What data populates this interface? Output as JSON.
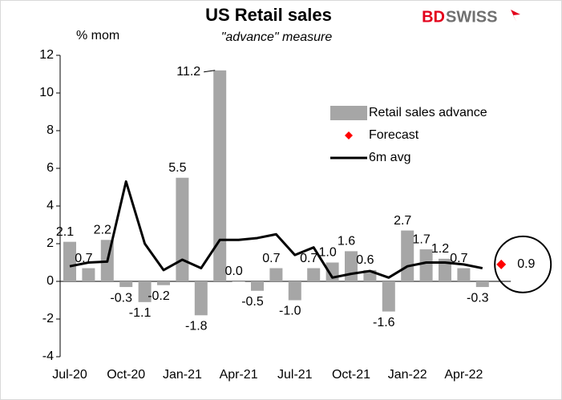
{
  "chart_data": {
    "type": "bar-line",
    "title": "US Retail sales",
    "subtitle": "\"advance\" measure",
    "y_label": "% mom",
    "logo": [
      "BD",
      "SWISS"
    ],
    "categories": [
      "Jul-20",
      null,
      null,
      "Oct-20",
      null,
      null,
      "Jan-21",
      null,
      null,
      "Apr-21",
      null,
      null,
      "Jul-21",
      null,
      null,
      "Oct-21",
      null,
      null,
      "Jan-22",
      null,
      null,
      "Apr-22",
      null,
      null
    ],
    "series": [
      {
        "name": "Retail sales advance",
        "kind": "bar",
        "color": "#a6a6a6",
        "values": [
          2.1,
          0.7,
          2.2,
          -0.3,
          -1.1,
          -0.2,
          5.5,
          -1.8,
          11.2,
          0,
          -0.5,
          0.7,
          -1.0,
          0.7,
          1.0,
          1.6,
          0.6,
          -1.6,
          2.7,
          1.7,
          1.2,
          0.7,
          -0.3,
          null
        ],
        "value_labels": [
          "2.1",
          "0.7",
          "2.2",
          "-0.3",
          "-1.1",
          "-0.2",
          "5.5",
          "-1.8",
          "11.2",
          "0.0",
          "-0.5",
          "0.7",
          "-1.0",
          "0.7",
          "1.0",
          "1.6",
          "0.6",
          "-1.6",
          "2.7",
          "1.7",
          "1.2",
          "0.7",
          "-0.3",
          null
        ]
      },
      {
        "name": "Forecast",
        "kind": "point",
        "color": "#ff0000",
        "values": [
          null,
          null,
          null,
          null,
          null,
          null,
          null,
          null,
          null,
          null,
          null,
          null,
          null,
          null,
          null,
          null,
          null,
          null,
          null,
          null,
          null,
          null,
          null,
          0.9
        ]
      },
      {
        "name": "6m avg",
        "kind": "line",
        "color": "#000000",
        "values": [
          0.8,
          1.0,
          1.05,
          5.3,
          2.0,
          0.6,
          1.15,
          0.7,
          2.2,
          2.2,
          2.3,
          2.5,
          1.4,
          1.8,
          0.2,
          0.4,
          0.55,
          0.2,
          0.8,
          1.0,
          1.0,
          0.9,
          0.7,
          null
        ]
      }
    ],
    "ylim": [
      -4,
      12
    ],
    "yticks": [
      -4,
      -2,
      0,
      2,
      4,
      6,
      8,
      10,
      12
    ],
    "legend": "upper right"
  }
}
